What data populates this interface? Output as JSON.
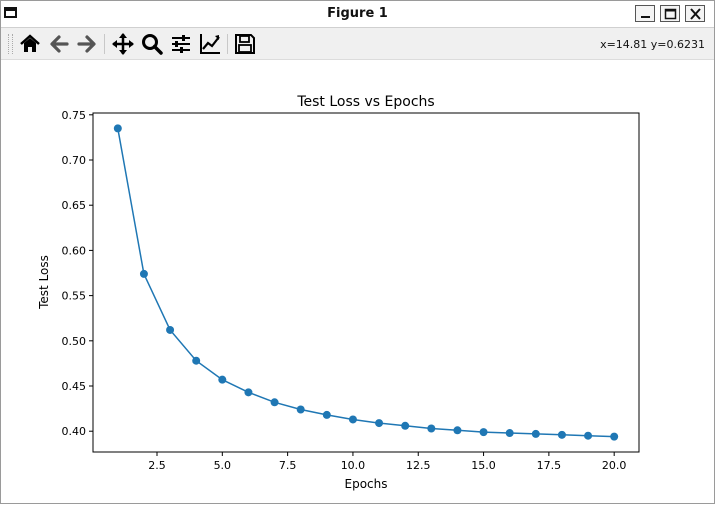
{
  "window": {
    "title": "Figure 1"
  },
  "toolbar": {
    "buttons": [
      {
        "name": "home-icon",
        "tooltip": "Reset original view"
      },
      {
        "name": "back-arrow-icon",
        "tooltip": "Back"
      },
      {
        "name": "forward-arrow-icon",
        "tooltip": "Forward"
      },
      {
        "name": "pan-icon",
        "tooltip": "Pan"
      },
      {
        "name": "zoom-icon",
        "tooltip": "Zoom"
      },
      {
        "name": "subplots-icon",
        "tooltip": "Configure subplots"
      },
      {
        "name": "edit-axis-icon",
        "tooltip": "Edit axis"
      },
      {
        "name": "save-icon",
        "tooltip": "Save"
      }
    ],
    "coords": "x=14.81 y=0.6231"
  },
  "chart_data": {
    "type": "line",
    "title": "Test Loss vs Epochs",
    "xlabel": "Epochs",
    "ylabel": "Test Loss",
    "x": [
      1,
      2,
      3,
      4,
      5,
      6,
      7,
      8,
      9,
      10,
      11,
      12,
      13,
      14,
      15,
      16,
      17,
      18,
      19,
      20
    ],
    "series": [
      {
        "values": [
          0.735,
          0.574,
          0.512,
          0.478,
          0.457,
          0.443,
          0.432,
          0.424,
          0.418,
          0.413,
          0.409,
          0.406,
          0.403,
          0.401,
          0.399,
          0.398,
          0.397,
          0.396,
          0.395,
          0.394
        ],
        "color": "#1f77b4",
        "marker": "circle"
      }
    ],
    "xlim": [
      0.05,
      20.95
    ],
    "ylim": [
      0.377,
      0.752
    ],
    "xticks": [
      2.5,
      5.0,
      7.5,
      10.0,
      12.5,
      15.0,
      17.5,
      20.0
    ],
    "xtick_labels": [
      "2.5",
      "5.0",
      "7.5",
      "10.0",
      "12.5",
      "15.0",
      "17.5",
      "20.0"
    ],
    "yticks": [
      0.4,
      0.45,
      0.5,
      0.55,
      0.6,
      0.65,
      0.7,
      0.75
    ],
    "ytick_labels": [
      "0.40",
      "0.45",
      "0.50",
      "0.55",
      "0.60",
      "0.65",
      "0.70",
      "0.75"
    ],
    "grid": false,
    "legend": null
  }
}
